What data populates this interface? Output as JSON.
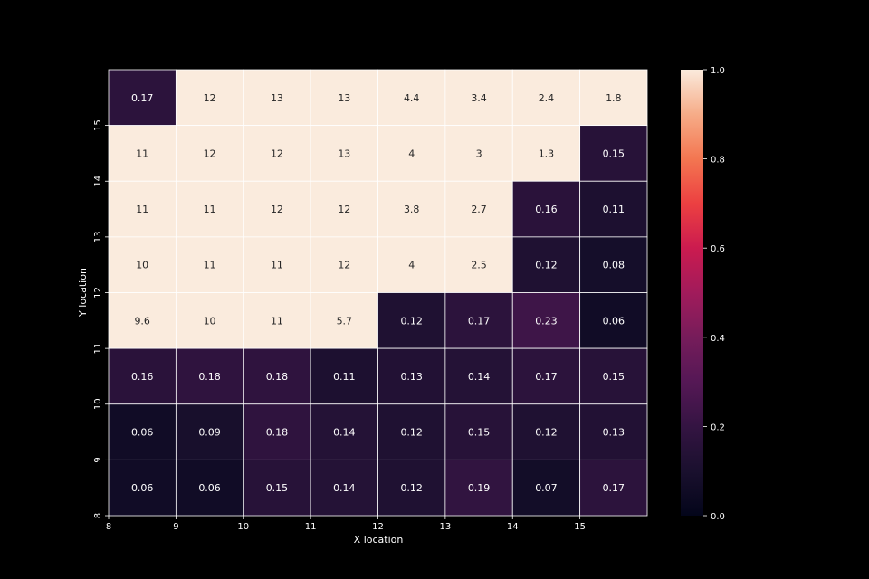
{
  "chart_data": {
    "type": "heatmap",
    "xlabel": "X location",
    "ylabel": "Y location",
    "x_ticks": [
      "8",
      "9",
      "10",
      "11",
      "12",
      "13",
      "14",
      "15"
    ],
    "y_ticks": [
      "8",
      "9",
      "10",
      "11",
      "12",
      "13",
      "14",
      "15"
    ],
    "x": [
      8,
      9,
      10,
      11,
      12,
      13,
      14,
      15
    ],
    "y": [
      15,
      14,
      13,
      12,
      11,
      10,
      9,
      8
    ],
    "values": [
      [
        0.17,
        12,
        13,
        13,
        4.4,
        3.4,
        2.4,
        1.8
      ],
      [
        11,
        12,
        12,
        13,
        4,
        3,
        1.3,
        0.15
      ],
      [
        11,
        11,
        12,
        12,
        3.8,
        2.7,
        0.16,
        0.11
      ],
      [
        10,
        11,
        11,
        12,
        4,
        2.5,
        0.12,
        0.08
      ],
      [
        9.6,
        10,
        11,
        5.7,
        0.12,
        0.17,
        0.23,
        0.06
      ],
      [
        0.16,
        0.18,
        0.18,
        0.11,
        0.13,
        0.14,
        0.17,
        0.15
      ],
      [
        0.06,
        0.09,
        0.18,
        0.14,
        0.12,
        0.15,
        0.12,
        0.13
      ],
      [
        0.06,
        0.06,
        0.15,
        0.14,
        0.12,
        0.19,
        0.07,
        0.17
      ]
    ],
    "labels": [
      [
        "0.17",
        "12",
        "13",
        "13",
        "4.4",
        "3.4",
        "2.4",
        "1.8"
      ],
      [
        "11",
        "12",
        "12",
        "13",
        "4",
        "3",
        "1.3",
        "0.15"
      ],
      [
        "11",
        "11",
        "12",
        "12",
        "3.8",
        "2.7",
        "0.16",
        "0.11"
      ],
      [
        "10",
        "11",
        "11",
        "12",
        "4",
        "2.5",
        "0.12",
        "0.08"
      ],
      [
        "9.6",
        "10",
        "11",
        "5.7",
        "0.12",
        "0.17",
        "0.23",
        "0.06"
      ],
      [
        "0.16",
        "0.18",
        "0.18",
        "0.11",
        "0.13",
        "0.14",
        "0.17",
        "0.15"
      ],
      [
        "0.06",
        "0.09",
        "0.18",
        "0.14",
        "0.12",
        "0.15",
        "0.12",
        "0.13"
      ],
      [
        "0.06",
        "0.06",
        "0.15",
        "0.14",
        "0.12",
        "0.19",
        "0.07",
        "0.17"
      ]
    ],
    "colorbar": {
      "vmin": 0.0,
      "vmax": 1.0,
      "ticks": [
        "0.0",
        "0.2",
        "0.4",
        "0.6",
        "0.8",
        "1.0"
      ],
      "tick_values": [
        0.0,
        0.2,
        0.4,
        0.6,
        0.8,
        1.0
      ],
      "colormap": "rocket"
    },
    "grid": false,
    "cell_border_color": "#ffffff",
    "background_color": "#000000",
    "text_color": "#ffffff"
  }
}
